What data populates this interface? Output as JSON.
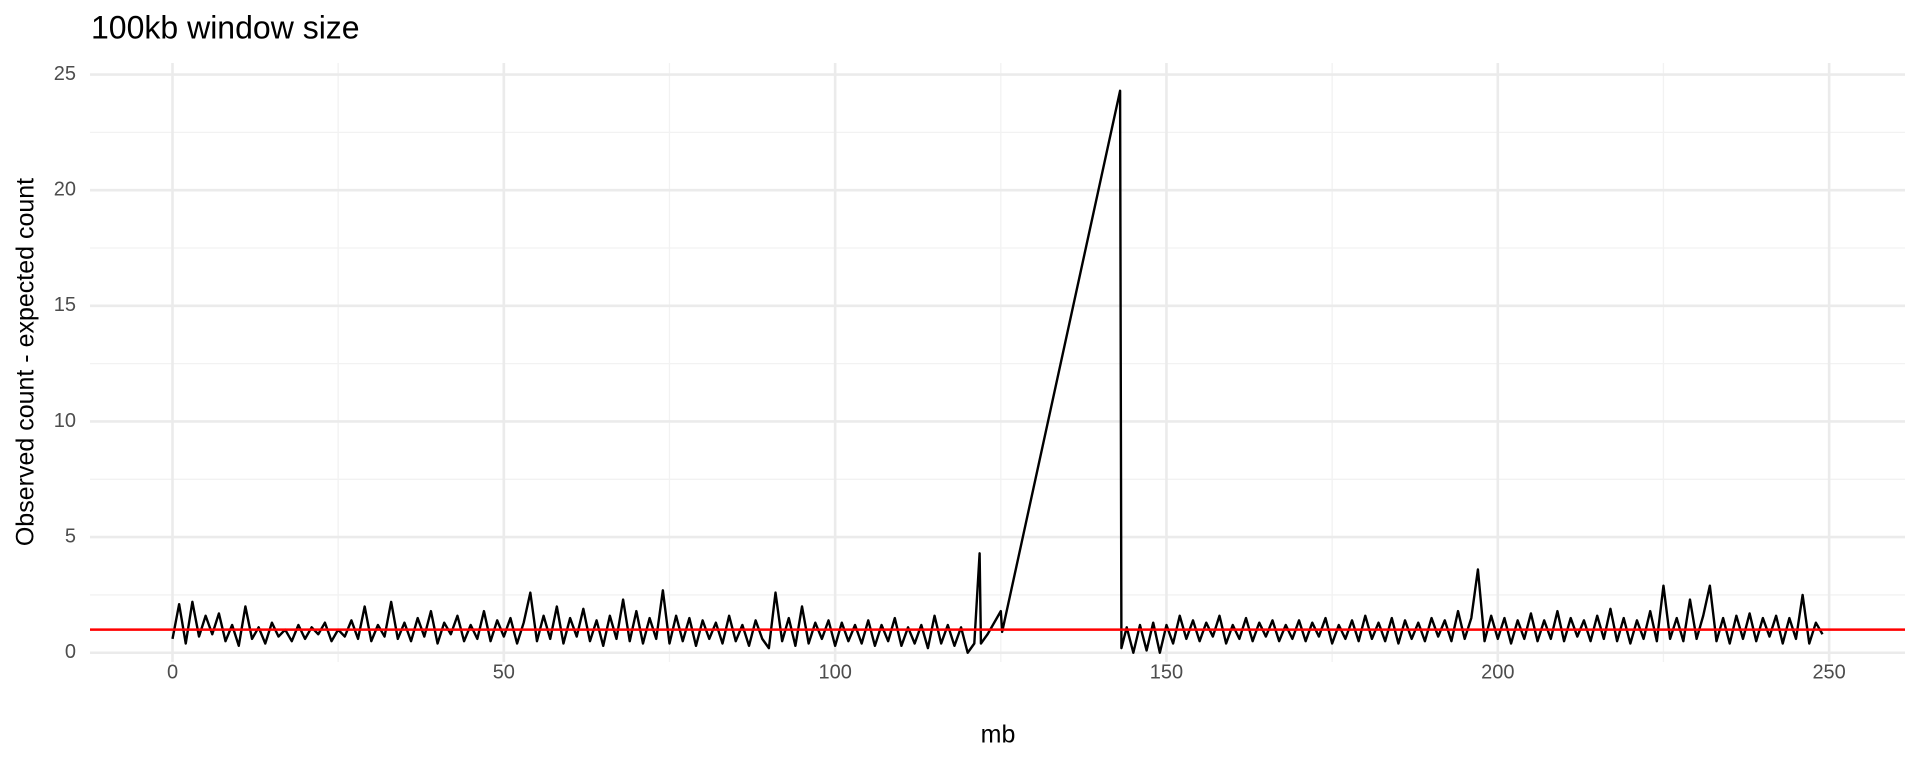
{
  "chart_data": {
    "type": "line",
    "title": "100kb window size",
    "xlabel": "mb",
    "ylabel": "Observed count - expected count",
    "x": [
      0,
      1,
      2,
      3,
      4,
      5,
      6,
      7,
      8,
      9,
      10,
      11,
      12,
      13,
      14,
      15,
      16,
      17,
      18,
      19,
      20,
      21,
      22,
      23,
      24,
      25,
      26,
      27,
      28,
      29,
      30,
      31,
      32,
      33,
      34,
      35,
      36,
      37,
      38,
      39,
      40,
      41,
      42,
      43,
      44,
      45,
      46,
      47,
      48,
      49,
      50,
      51,
      52,
      53,
      54,
      55,
      56,
      57,
      58,
      59,
      60,
      61,
      62,
      63,
      64,
      65,
      66,
      67,
      68,
      69,
      70,
      71,
      72,
      73,
      74,
      75,
      76,
      77,
      78,
      79,
      80,
      81,
      82,
      83,
      84,
      85,
      86,
      87,
      88,
      89,
      90,
      91,
      92,
      93,
      94,
      95,
      96,
      97,
      98,
      99,
      100,
      101,
      102,
      103,
      104,
      105,
      106,
      107,
      108,
      109,
      110,
      111,
      112,
      113,
      114,
      115,
      116,
      117,
      118,
      119,
      120,
      121,
      121.8,
      122,
      123,
      125,
      125.2,
      143,
      143.2,
      144,
      145,
      146,
      147,
      148,
      149,
      150,
      151,
      152,
      153,
      154,
      155,
      156,
      157,
      158,
      159,
      160,
      161,
      162,
      163,
      164,
      165,
      166,
      167,
      168,
      169,
      170,
      171,
      172,
      173,
      174,
      175,
      176,
      177,
      178,
      179,
      180,
      181,
      182,
      183,
      184,
      185,
      186,
      187,
      188,
      189,
      190,
      191,
      192,
      193,
      194,
      195,
      196,
      197,
      198,
      199,
      200,
      201,
      202,
      203,
      204,
      205,
      206,
      207,
      208,
      209,
      210,
      211,
      212,
      213,
      214,
      215,
      216,
      217,
      218,
      219,
      220,
      221,
      222,
      223,
      224,
      225,
      226,
      227,
      228,
      229,
      230,
      231,
      232,
      233,
      234,
      235,
      236,
      237,
      238,
      239,
      240,
      241,
      242,
      243,
      244,
      245,
      246,
      247,
      248,
      249
    ],
    "series": [
      {
        "color": "#000000",
        "values": [
          0.6,
          2.1,
          0.4,
          2.2,
          0.7,
          1.6,
          0.8,
          1.7,
          0.5,
          1.2,
          0.3,
          2.0,
          0.6,
          1.1,
          0.4,
          1.3,
          0.7,
          1.0,
          0.5,
          1.2,
          0.6,
          1.1,
          0.8,
          1.3,
          0.5,
          1.0,
          0.7,
          1.4,
          0.6,
          2.0,
          0.5,
          1.2,
          0.7,
          2.2,
          0.6,
          1.3,
          0.5,
          1.5,
          0.7,
          1.8,
          0.4,
          1.3,
          0.8,
          1.6,
          0.5,
          1.2,
          0.6,
          1.8,
          0.5,
          1.4,
          0.7,
          1.5,
          0.4,
          1.3,
          2.6,
          0.5,
          1.6,
          0.6,
          2.0,
          0.4,
          1.5,
          0.7,
          1.9,
          0.5,
          1.4,
          0.3,
          1.6,
          0.6,
          2.3,
          0.5,
          1.8,
          0.4,
          1.5,
          0.6,
          2.7,
          0.4,
          1.6,
          0.5,
          1.5,
          0.3,
          1.4,
          0.6,
          1.3,
          0.4,
          1.6,
          0.5,
          1.2,
          0.3,
          1.4,
          0.6,
          0.2,
          2.6,
          0.5,
          1.5,
          0.3,
          2.0,
          0.4,
          1.3,
          0.6,
          1.4,
          0.3,
          1.3,
          0.5,
          1.2,
          0.4,
          1.4,
          0.3,
          1.2,
          0.5,
          1.5,
          0.3,
          1.1,
          0.4,
          1.2,
          0.2,
          1.6,
          0.4,
          1.2,
          0.3,
          1.1,
          0.0,
          0.4,
          4.3,
          0.4,
          0.8,
          1.8,
          0.9,
          24.3,
          0.2,
          1.1,
          0.0,
          1.2,
          0.1,
          1.3,
          0.0,
          1.2,
          0.4,
          1.6,
          0.6,
          1.4,
          0.5,
          1.3,
          0.7,
          1.6,
          0.4,
          1.2,
          0.6,
          1.5,
          0.5,
          1.3,
          0.7,
          1.4,
          0.5,
          1.2,
          0.6,
          1.4,
          0.5,
          1.3,
          0.7,
          1.5,
          0.4,
          1.2,
          0.6,
          1.4,
          0.5,
          1.6,
          0.6,
          1.3,
          0.5,
          1.5,
          0.4,
          1.4,
          0.6,
          1.3,
          0.5,
          1.5,
          0.7,
          1.4,
          0.5,
          1.8,
          0.6,
          1.5,
          3.6,
          0.5,
          1.6,
          0.6,
          1.5,
          0.4,
          1.4,
          0.6,
          1.7,
          0.5,
          1.4,
          0.6,
          1.8,
          0.5,
          1.5,
          0.7,
          1.4,
          0.5,
          1.6,
          0.6,
          1.9,
          0.5,
          1.5,
          0.4,
          1.4,
          0.6,
          1.8,
          0.5,
          2.9,
          0.6,
          1.5,
          0.5,
          2.3,
          0.6,
          1.6,
          2.9,
          0.5,
          1.5,
          0.4,
          1.6,
          0.6,
          1.7,
          0.5,
          1.5,
          0.7,
          1.6,
          0.4,
          1.5,
          0.6,
          2.5,
          0.4,
          1.3,
          0.8
        ]
      }
    ],
    "hline": {
      "value": 1,
      "color": "#ff0000"
    },
    "xlim": [
      -12.45,
      261.45
    ],
    "xticks": [
      0,
      50,
      100,
      150,
      200,
      250
    ],
    "minor_xticks": [
      25,
      75,
      125,
      175,
      225
    ],
    "ylim": [
      -0.4,
      25.5
    ],
    "yticks": [
      0,
      5,
      10,
      15,
      20,
      25
    ],
    "minor_yticks": [
      2.5,
      7.5,
      12.5,
      17.5,
      22.5
    ],
    "grid": true
  }
}
